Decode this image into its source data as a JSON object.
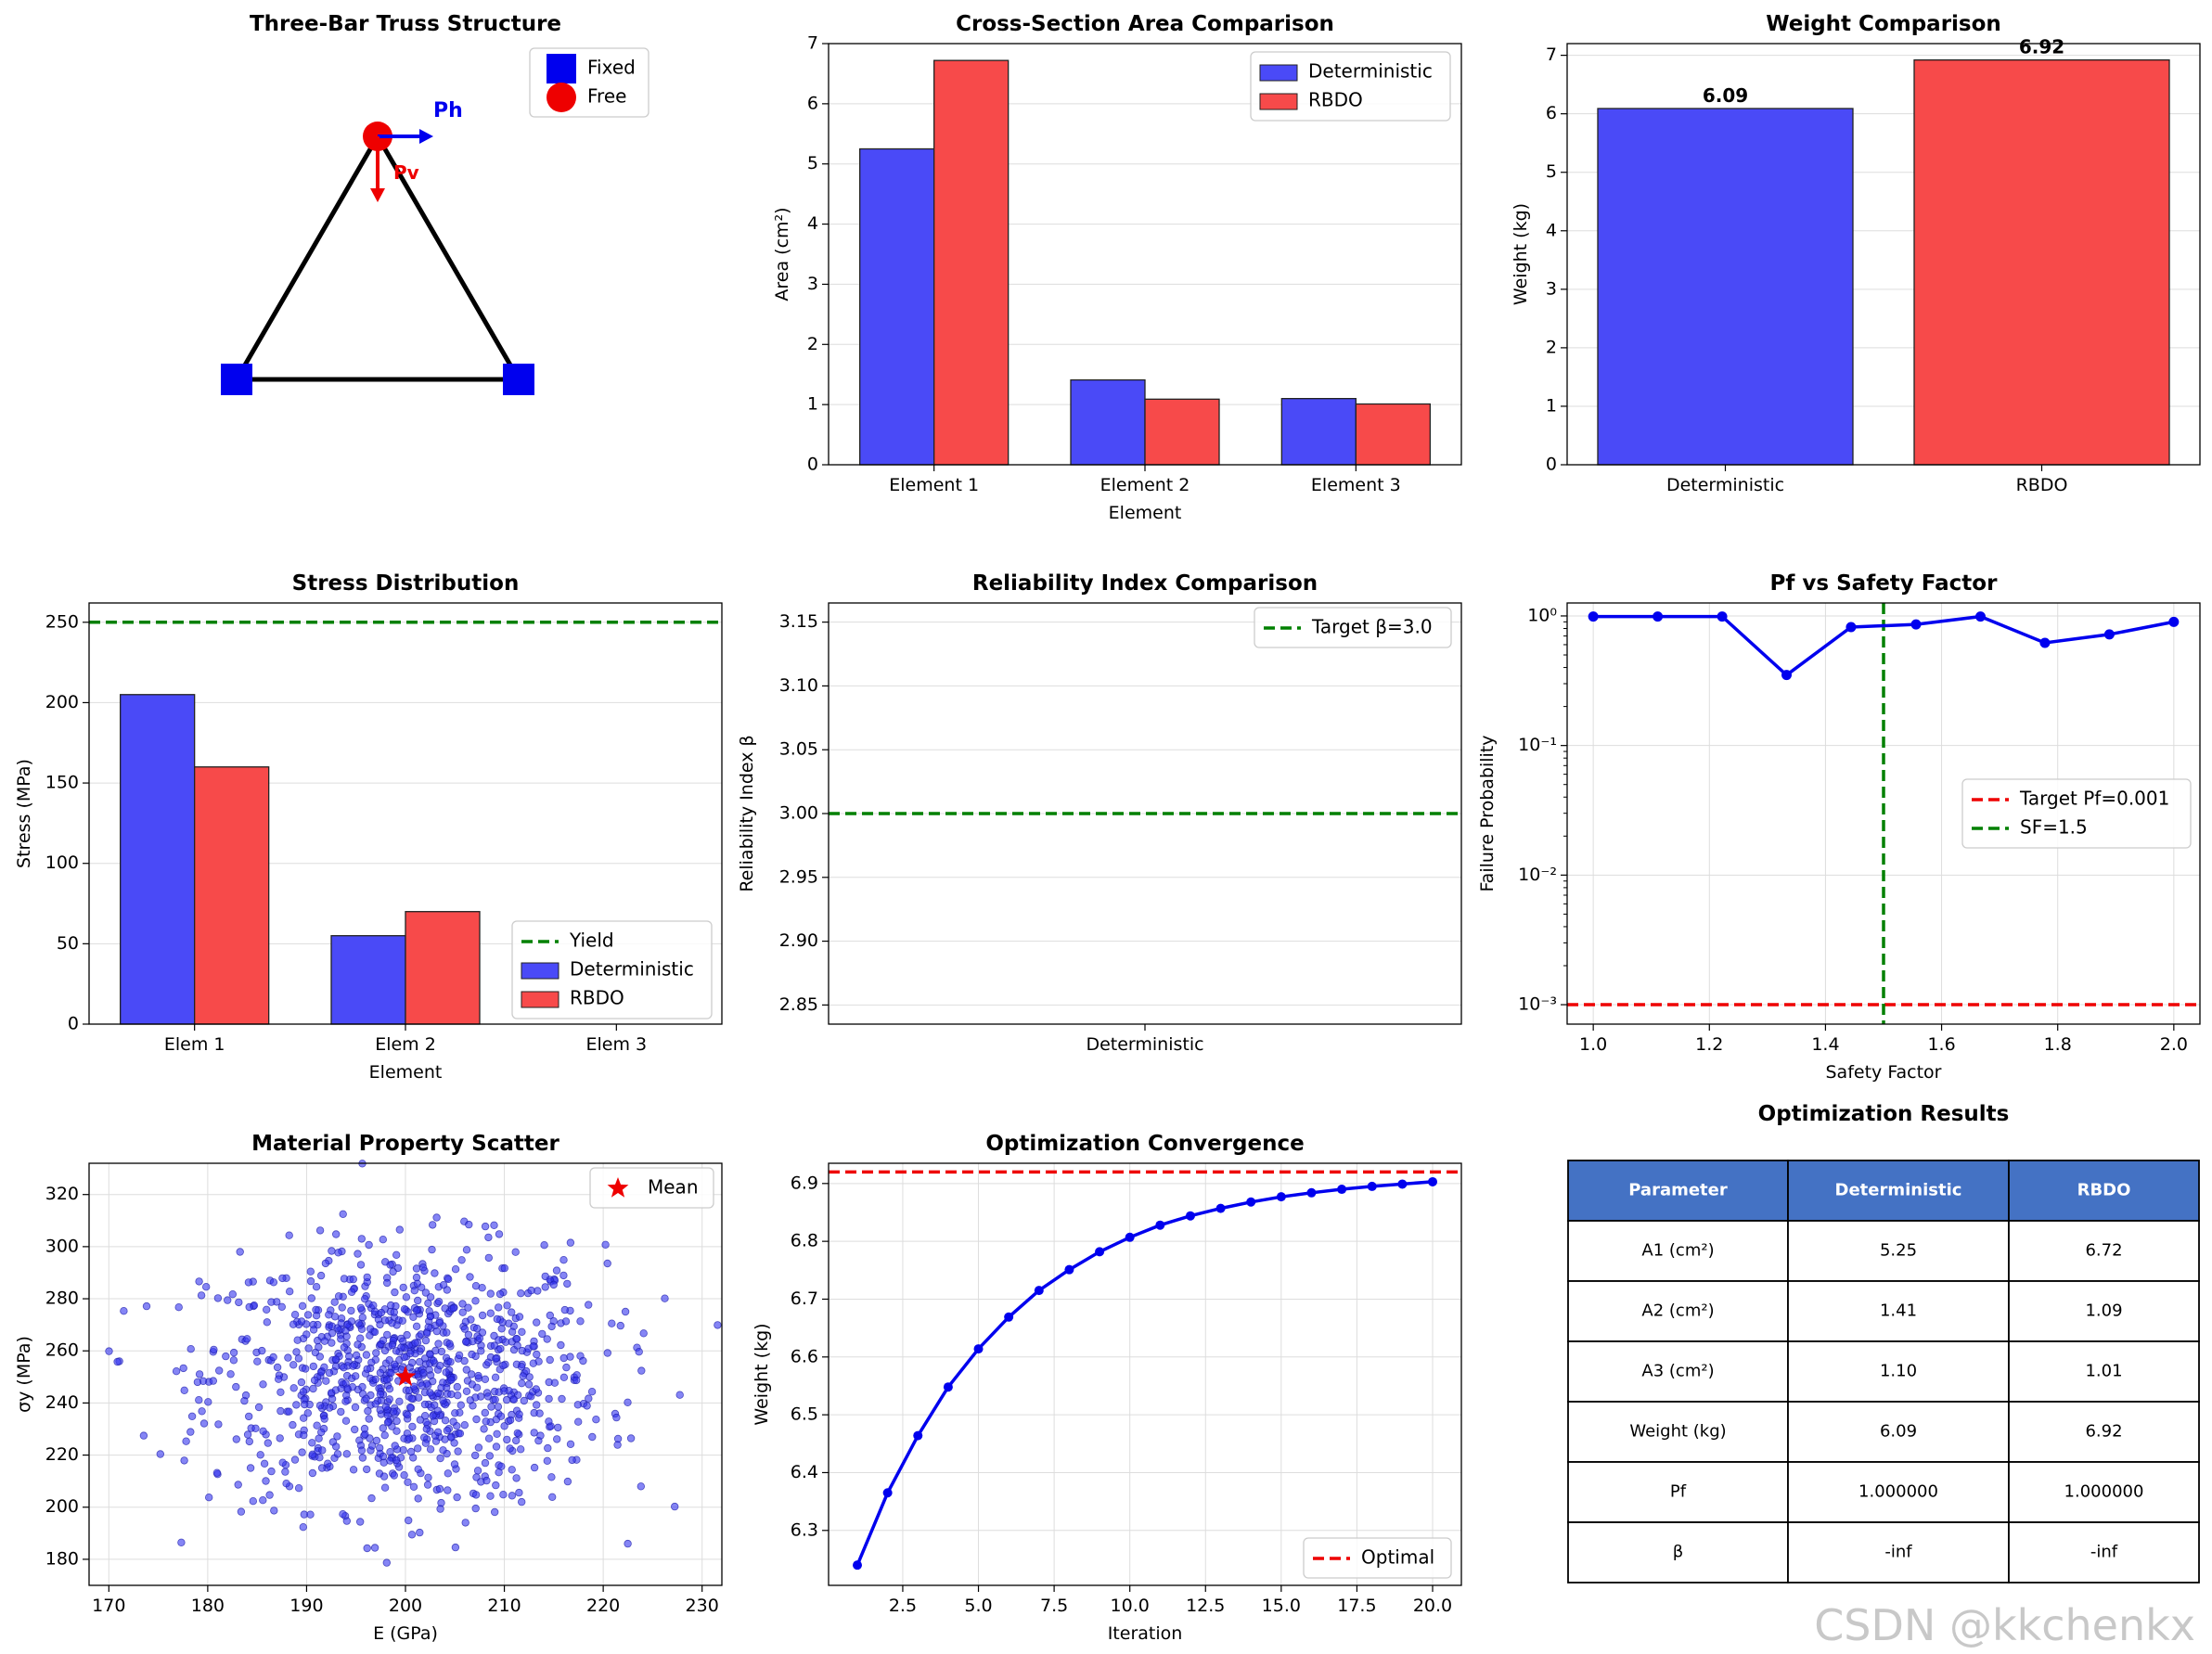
{
  "watermark": "CSDN @kkchenkx",
  "colors": {
    "det": "#4a4af7",
    "rbdo": "#f74a4a",
    "edge": "#222222",
    "green": "#008000",
    "red": "#ee0000",
    "blue": "#0000ee",
    "grid": "#dddddd",
    "header": "#4472c4"
  },
  "chart_data": [
    {
      "id": "truss",
      "type": "diagram",
      "title": "Three-Bar Truss Structure",
      "legend": [
        "Fixed",
        "Free"
      ],
      "load_labels": [
        "Ph",
        "Pv"
      ]
    },
    {
      "id": "area",
      "type": "bar",
      "title": "Cross-Section Area Comparison",
      "xlabel": "Element",
      "ylabel": "Area (cm²)",
      "ylim": [
        0,
        7
      ],
      "yticks": [
        0,
        1,
        2,
        3,
        4,
        5,
        6,
        7
      ],
      "categories": [
        "Element 1",
        "Element 2",
        "Element 3"
      ],
      "series": [
        {
          "name": "Deterministic",
          "values": [
            5.25,
            1.41,
            1.1
          ]
        },
        {
          "name": "RBDO",
          "values": [
            6.72,
            1.09,
            1.01
          ]
        }
      ],
      "legend": "top-right"
    },
    {
      "id": "weight",
      "type": "bar",
      "title": "Weight Comparison",
      "xlabel": "",
      "ylabel": "Weight (kg)",
      "ylim": [
        0,
        7.2
      ],
      "yticks": [
        0,
        1,
        2,
        3,
        4,
        5,
        6,
        7
      ],
      "categories": [
        "Deterministic",
        "RBDO"
      ],
      "values": [
        6.09,
        6.92
      ],
      "value_labels": [
        "6.09",
        "6.92"
      ]
    },
    {
      "id": "stress",
      "type": "bar",
      "title": "Stress Distribution",
      "xlabel": "Element",
      "ylabel": "Stress (MPa)",
      "ylim": [
        0,
        262
      ],
      "yticks": [
        0,
        50,
        100,
        150,
        200,
        250
      ],
      "categories": [
        "Elem 1",
        "Elem 2",
        "Elem 3"
      ],
      "series": [
        {
          "name": "Deterministic",
          "values": [
            205,
            55,
            0
          ]
        },
        {
          "name": "RBDO",
          "values": [
            160,
            70,
            0
          ]
        }
      ],
      "hline": {
        "name": "Yield",
        "value": 250
      },
      "legend": "lower-right"
    },
    {
      "id": "reliability",
      "type": "bar",
      "title": "Reliability Index Comparison",
      "xlabel": "",
      "ylabel": "Reliability Index β",
      "ylim": [
        2.835,
        3.165
      ],
      "yticks": [
        2.85,
        2.9,
        2.95,
        3.0,
        3.05,
        3.1,
        3.15
      ],
      "ytick_labels": [
        "2.85",
        "2.90",
        "2.95",
        "3.00",
        "3.05",
        "3.10",
        "3.15"
      ],
      "categories": [
        "Deterministic"
      ],
      "hline": {
        "name": "Target β=3.0",
        "value": 3.0
      },
      "legend": "top-right"
    },
    {
      "id": "pf",
      "type": "line",
      "title": "Pf vs Safety Factor",
      "xlabel": "Safety Factor",
      "ylabel": "Failure Probability",
      "xlim": [
        0.955,
        2.045
      ],
      "xticks": [
        1.0,
        1.2,
        1.4,
        1.6,
        1.8,
        2.0
      ],
      "xtick_labels": [
        "1.0",
        "1.2",
        "1.4",
        "1.6",
        "1.8",
        "2.0"
      ],
      "yscale": "log",
      "ylim_log10": [
        -3.15,
        0.1
      ],
      "yticks_log10": [
        0,
        -1,
        -2,
        -3
      ],
      "ytick_labels": [
        "10⁰",
        "10⁻¹",
        "10⁻²",
        "10⁻³"
      ],
      "x": [
        1.0,
        1.111,
        1.222,
        1.333,
        1.444,
        1.556,
        1.667,
        1.778,
        1.889,
        2.0
      ],
      "y": [
        0.99,
        0.99,
        0.99,
        0.35,
        0.82,
        0.86,
        0.99,
        0.62,
        0.72,
        0.9
      ],
      "hline": {
        "name": "Target Pf=0.001",
        "value": 0.001
      },
      "vline": {
        "name": "SF=1.5",
        "value": 1.5
      },
      "legend": "center-right"
    },
    {
      "id": "scatter",
      "type": "scatter",
      "title": "Material Property Scatter",
      "xlabel": "E (GPa)",
      "ylabel": "σy (MPa)",
      "xlim": [
        168,
        232
      ],
      "xticks": [
        170,
        180,
        190,
        200,
        210,
        220,
        230
      ],
      "ylim": [
        170,
        332
      ],
      "yticks": [
        180,
        200,
        220,
        240,
        260,
        280,
        300,
        320
      ],
      "n_points": 1000,
      "e_mean": 200,
      "e_std": 10,
      "sy_mean": 250,
      "sy_std": 25,
      "mean": {
        "name": "Mean",
        "E": 200,
        "sy": 250
      },
      "legend": "top-right"
    },
    {
      "id": "convergence",
      "type": "line",
      "title": "Optimization Convergence",
      "xlabel": "Iteration",
      "ylabel": "Weight (kg)",
      "xlim": [
        0.05,
        20.95
      ],
      "xticks": [
        2.5,
        5.0,
        7.5,
        10.0,
        12.5,
        15.0,
        17.5,
        20.0
      ],
      "xtick_labels": [
        "2.5",
        "5.0",
        "7.5",
        "10.0",
        "12.5",
        "15.0",
        "17.5",
        "20.0"
      ],
      "ylim": [
        6.205,
        6.935
      ],
      "yticks": [
        6.3,
        6.4,
        6.5,
        6.6,
        6.7,
        6.8,
        6.9
      ],
      "ytick_labels": [
        "6.3",
        "6.4",
        "6.5",
        "6.6",
        "6.7",
        "6.8",
        "6.9"
      ],
      "x": [
        1,
        2,
        3,
        4,
        5,
        6,
        7,
        8,
        9,
        10,
        11,
        12,
        13,
        14,
        15,
        16,
        17,
        18,
        19,
        20
      ],
      "y": [
        6.24,
        6.365,
        6.464,
        6.548,
        6.614,
        6.669,
        6.715,
        6.751,
        6.782,
        6.807,
        6.828,
        6.844,
        6.857,
        6.868,
        6.877,
        6.884,
        6.89,
        6.895,
        6.899,
        6.903
      ],
      "hline": {
        "name": "Optimal",
        "value": 6.92
      },
      "legend": "lower-right"
    },
    {
      "id": "results",
      "type": "table",
      "title": "Optimization Results",
      "columns": [
        "Parameter",
        "Deterministic",
        "RBDO"
      ],
      "rows": [
        [
          "A1 (cm²)",
          "5.25",
          "6.72"
        ],
        [
          "A2 (cm²)",
          "1.41",
          "1.09"
        ],
        [
          "A3 (cm²)",
          "1.10",
          "1.01"
        ],
        [
          "Weight (kg)",
          "6.09",
          "6.92"
        ],
        [
          "Pf",
          "1.000000",
          "1.000000"
        ],
        [
          "β",
          "-inf",
          "-inf"
        ]
      ]
    }
  ]
}
